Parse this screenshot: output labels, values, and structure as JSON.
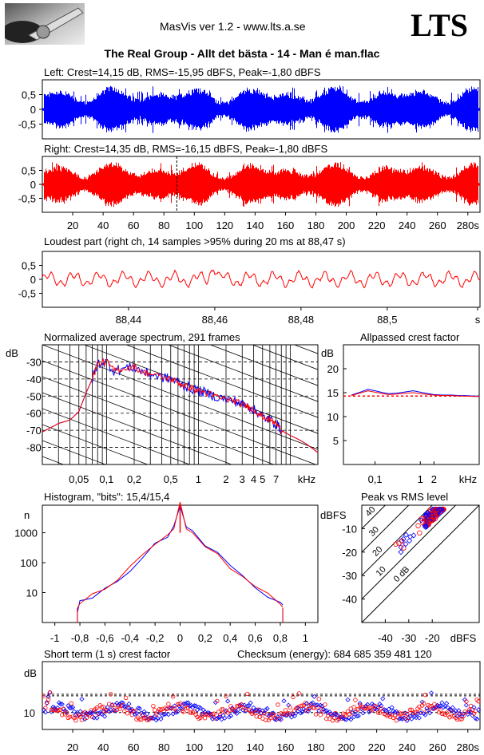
{
  "header": {
    "app_title": "MasVis ver 1.2 - www.lts.a.se",
    "brand": "LTS",
    "file_title": "The Real Group - Allt det bästa - 14 - Man é man.flac"
  },
  "colors": {
    "left": "#0000ff",
    "right": "#ff0000",
    "grid": "#000000"
  },
  "panels": {
    "left_wave": {
      "title": "Left: Crest=14,15 dB, RMS=-15,95 dBFS, Peak=-1,80 dBFS",
      "yticks": [
        "0,5",
        "0",
        "-0,5"
      ]
    },
    "right_wave": {
      "title": "Right: Crest=14,35 dB, RMS=-16,15 dBFS, Peak=-1,80 dBFS",
      "yticks": [
        "0,5",
        "0",
        "-0,5"
      ],
      "xticks": [
        "20",
        "40",
        "60",
        "80",
        "100",
        "120",
        "140",
        "160",
        "180",
        "200",
        "220",
        "240",
        "260",
        "280s"
      ]
    },
    "loudest": {
      "title": "Loudest part (right ch, 14 samples >95% during 20 ms at 88,47 s)",
      "yticks": [
        "0,5",
        "0",
        "-0,5"
      ],
      "xticks": [
        "88,44",
        "88,46",
        "88,48",
        "88,5",
        "s"
      ]
    },
    "spectrum": {
      "title": "Normalized average spectrum, 291 frames",
      "ylabel": "dB",
      "yticks": [
        "-30",
        "-40",
        "-50",
        "-60",
        "-70",
        "-80"
      ],
      "xticks": [
        "0,05",
        "0,1",
        "0,2",
        "0,5",
        "1",
        "2",
        "3",
        "4",
        "5",
        "7",
        "kHz"
      ]
    },
    "allpass": {
      "title": "Allpassed crest factor",
      "ylabel": "dB",
      "yticks": [
        "20",
        "15",
        "10",
        "5"
      ],
      "xticks": [
        "0,1",
        "1",
        "2",
        "kHz"
      ]
    },
    "histogram": {
      "title": "Histogram, \"bits\": 15,4/15,4",
      "ylabel": "n",
      "yticks": [
        "1000",
        "100",
        "10"
      ],
      "xticks": [
        "-1",
        "-0,8",
        "-0,6",
        "-0,4",
        "-0,2",
        "0",
        "0,2",
        "0,4",
        "0,6",
        "0,8",
        "1"
      ]
    },
    "peak_rms": {
      "title": "Peak vs RMS level",
      "ylabel": "dBFS",
      "yticks": [
        "-10",
        "-20",
        "-30",
        "-40"
      ],
      "xticks": [
        "-40",
        "-30",
        "-20",
        "dBFS"
      ],
      "diag_labels": [
        "40",
        "30",
        "20",
        "10",
        "0 dB"
      ]
    },
    "short_crest": {
      "title": "Short term (1 s) crest factor",
      "checksum": "Checksum (energy):   684 685 359 481 120",
      "ylabel": "dB",
      "yticks": [
        "10"
      ],
      "xticks": [
        "20",
        "40",
        "60",
        "80",
        "100",
        "120",
        "140",
        "160",
        "180",
        "200",
        "220",
        "240",
        "260",
        "280s"
      ]
    }
  },
  "chart_data": [
    {
      "type": "area",
      "panel": "left_wave",
      "duration_s": 288,
      "ylim": [
        -1,
        1
      ],
      "peak": 0.81
    },
    {
      "type": "area",
      "panel": "right_wave",
      "duration_s": 288,
      "ylim": [
        -1,
        1
      ],
      "peak": 0.81,
      "marker_x": 88.47
    },
    {
      "type": "line",
      "panel": "loudest",
      "xlim": [
        88.42,
        88.52
      ],
      "ylim": [
        -1,
        1
      ],
      "peak": 0.81,
      "peak_x": 88.4597
    },
    {
      "type": "line",
      "panel": "spectrum",
      "xunit": "kHz",
      "ylim": [
        -90,
        -20
      ],
      "x": [
        0.02,
        0.03,
        0.04,
        0.05,
        0.06,
        0.07,
        0.08,
        0.1,
        0.12,
        0.15,
        0.2,
        0.25,
        0.3,
        0.4,
        0.5,
        0.6,
        0.7,
        0.8,
        1,
        1.2,
        1.5,
        2,
        2.5,
        3,
        3.5,
        4,
        4.5,
        5,
        6,
        7,
        8,
        10,
        12,
        15,
        20
      ],
      "series": [
        {
          "values": [
            -71,
            -66,
            -64,
            -59,
            -48,
            -40,
            -31,
            -30,
            -35,
            -34,
            -33,
            -36,
            -37,
            -39,
            -40,
            -42,
            -44,
            -45,
            -47,
            -48,
            -50,
            -52,
            -53,
            -55,
            -56,
            -58,
            -60,
            -62,
            -64,
            -66,
            -70,
            -73,
            -75,
            -78,
            -83
          ]
        }
      ]
    },
    {
      "type": "line",
      "panel": "allpass",
      "xunit": "kHz",
      "ylim": [
        0,
        25
      ],
      "x": [
        0.03,
        0.05,
        0.07,
        0.1,
        0.15,
        0.2,
        0.3,
        0.5,
        0.7,
        1,
        1.5,
        2,
        3,
        5,
        7,
        10,
        15,
        20
      ],
      "series": [
        {
          "values": [
            14.5,
            15.2,
            15.7,
            15.4,
            15.0,
            14.8,
            14.9,
            15.2,
            15.4,
            15.1,
            14.8,
            14.6,
            14.5,
            14.5,
            14.4,
            14.4,
            14.3,
            14.3
          ]
        },
        {
          "values": [
            14.4,
            15.0,
            15.4,
            15.1,
            14.8,
            14.6,
            14.7,
            14.9,
            15.0,
            14.8,
            14.6,
            14.5,
            14.4,
            14.4,
            14.3,
            14.3,
            14.2,
            14.2
          ]
        }
      ],
      "reference": 14.3
    },
    {
      "type": "line",
      "panel": "histogram",
      "xlim": [
        -1.1,
        1.1
      ],
      "yscale": "log",
      "x": [
        -0.82,
        -0.8,
        -0.7,
        -0.6,
        -0.5,
        -0.4,
        -0.3,
        -0.2,
        -0.1,
        -0.05,
        0,
        0.05,
        0.1,
        0.2,
        0.3,
        0.4,
        0.5,
        0.6,
        0.7,
        0.8,
        0.82
      ],
      "series": [
        {
          "values": [
            3,
            5,
            8,
            15,
            30,
            70,
            170,
            400,
            900,
            1400,
            9000,
            1400,
            900,
            400,
            170,
            70,
            30,
            15,
            8,
            5,
            3
          ]
        }
      ]
    },
    {
      "type": "scatter",
      "panel": "peak_rms",
      "xlim": [
        -50,
        0
      ],
      "ylim": [
        -50,
        0
      ],
      "note": "RMS (x) vs peak (y) per block, clustered near x -20 to -15, y -5 to -2"
    },
    {
      "type": "scatter",
      "panel": "short_crest",
      "xlim": [
        0,
        288
      ],
      "ylim": [
        6,
        22
      ],
      "reference_lines": [
        10,
        14.3
      ]
    }
  ]
}
